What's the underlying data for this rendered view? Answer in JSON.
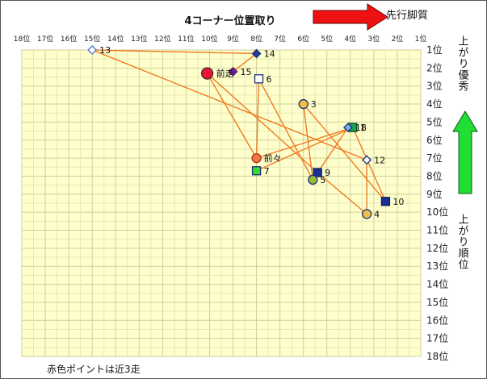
{
  "chart_data": {
    "type": "scatter",
    "title": "4コーナー位置取り",
    "x_ticks": [
      "18位",
      "17位",
      "16位",
      "15位",
      "14位",
      "13位",
      "12位",
      "11位",
      "10位",
      "9位",
      "8位",
      "7位",
      "6位",
      "5位",
      "4位",
      "3位",
      "2位",
      "1位"
    ],
    "y_ticks": [
      "1位",
      "2位",
      "3位",
      "4位",
      "5位",
      "6位",
      "7位",
      "8位",
      "9位",
      "10位",
      "11位",
      "12位",
      "13位",
      "14位",
      "15位",
      "16位",
      "17位",
      "18位"
    ],
    "xlim": [
      18,
      1
    ],
    "ylim": [
      1,
      18
    ],
    "x_meaning": "4コーナー位置取り",
    "y_meaning": "上がり順位",
    "arrow_right_label": "先行脚質",
    "arrow_up_label_top": "上がり優秀",
    "arrow_up_label_bottom": "上がり順位",
    "footnote": "赤色ポイントは近3走",
    "colors": {
      "plot_bg": "#ffffcc",
      "grid": "#d9d9a8",
      "line": "#f07a20",
      "red_arrow": "#ee1111",
      "green_arrow": "#22dd33"
    },
    "points": [
      {
        "label": "13",
        "x": 15,
        "y": 1,
        "marker": "diamond",
        "fill": "#ffffff",
        "stroke": "#4a6fd0"
      },
      {
        "label": "14",
        "x": 8,
        "y": 1.2,
        "marker": "diamond",
        "fill": "#223d99",
        "stroke": "#1a2f77"
      },
      {
        "label": "15",
        "x": 9,
        "y": 2.2,
        "marker": "diamond",
        "fill": "#7a1fa0",
        "stroke": "#4a1060"
      },
      {
        "label": "前走",
        "x": 10.1,
        "y": 2.3,
        "marker": "circle-large",
        "fill": "#ee1133",
        "stroke": "#333333"
      },
      {
        "label": "6",
        "x": 7.9,
        "y": 2.6,
        "marker": "square",
        "fill": "#ffffff",
        "stroke": "#1a2f77"
      },
      {
        "label": "3",
        "x": 6,
        "y": 4,
        "marker": "circle",
        "fill": "#f2c04a",
        "stroke": "#1a2f77"
      },
      {
        "label": "1",
        "x": 3.9,
        "y": 5.3,
        "marker": "square",
        "fill": "#1aa84a",
        "stroke": "#0e3d22"
      },
      {
        "label": "18",
        "x": 4.1,
        "y": 5.3,
        "marker": "diamond",
        "fill": "#7ab0ee",
        "stroke": "#1a2f77"
      },
      {
        "label": "前々",
        "x": 8,
        "y": 7,
        "marker": "circle",
        "fill": "#f07a40",
        "stroke": "#aa3322"
      },
      {
        "label": "12",
        "x": 3.3,
        "y": 7.1,
        "marker": "diamond",
        "fill": "#ffffff",
        "stroke": "#1a2f77"
      },
      {
        "label": "7",
        "x": 8,
        "y": 7.7,
        "marker": "square",
        "fill": "#33dd33",
        "stroke": "#1a2f77"
      },
      {
        "label": "9",
        "x": 5.4,
        "y": 7.8,
        "marker": "square",
        "fill": "#1a2f99",
        "stroke": "#0e1d55"
      },
      {
        "label": "5",
        "x": 5.6,
        "y": 8.2,
        "marker": "circle",
        "fill": "#99bb33",
        "stroke": "#1a2f77"
      },
      {
        "label": "10",
        "x": 2.5,
        "y": 9.4,
        "marker": "square",
        "fill": "#1a2f99",
        "stroke": "#0e1d55"
      },
      {
        "label": "4",
        "x": 3.3,
        "y": 10.1,
        "marker": "circle",
        "fill": "#f2c04a",
        "stroke": "#1a2f77"
      }
    ],
    "lines": [
      {
        "from": "13",
        "to": "14"
      },
      {
        "from": "13",
        "to": "12"
      },
      {
        "from": "15",
        "to": "14"
      },
      {
        "from": "前走",
        "to": "前々"
      },
      {
        "from": "前走",
        "to": "9"
      },
      {
        "from": "6",
        "to": "前々"
      },
      {
        "from": "6",
        "to": "5"
      },
      {
        "from": "3",
        "to": "10"
      },
      {
        "from": "3",
        "to": "5"
      },
      {
        "from": "前々",
        "to": "1"
      },
      {
        "from": "7",
        "to": "1"
      },
      {
        "from": "5",
        "to": "18"
      },
      {
        "from": "12",
        "to": "4"
      },
      {
        "from": "9",
        "to": "4"
      },
      {
        "from": "1",
        "to": "10"
      }
    ],
    "grid": true,
    "legend": "none"
  }
}
